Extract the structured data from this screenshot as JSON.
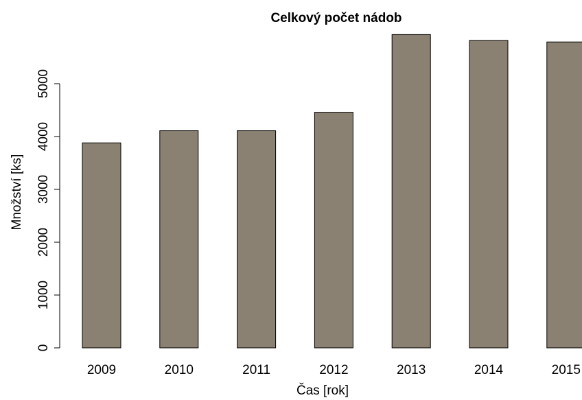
{
  "chart_data": {
    "type": "bar",
    "title": "Celkový počet nádob",
    "xlabel": "Čas [rok]",
    "ylabel": "Množství [ks]",
    "categories": [
      "2009",
      "2010",
      "2011",
      "2012",
      "2013",
      "2014",
      "2015"
    ],
    "values": [
      3880,
      4110,
      4110,
      4460,
      5930,
      5820,
      5790
    ],
    "ylim": [
      0,
      5930
    ],
    "yticks": [
      0,
      1000,
      2000,
      3000,
      4000,
      5000
    ],
    "bar_color": "#8b8172",
    "grid": false,
    "legend": "none"
  }
}
